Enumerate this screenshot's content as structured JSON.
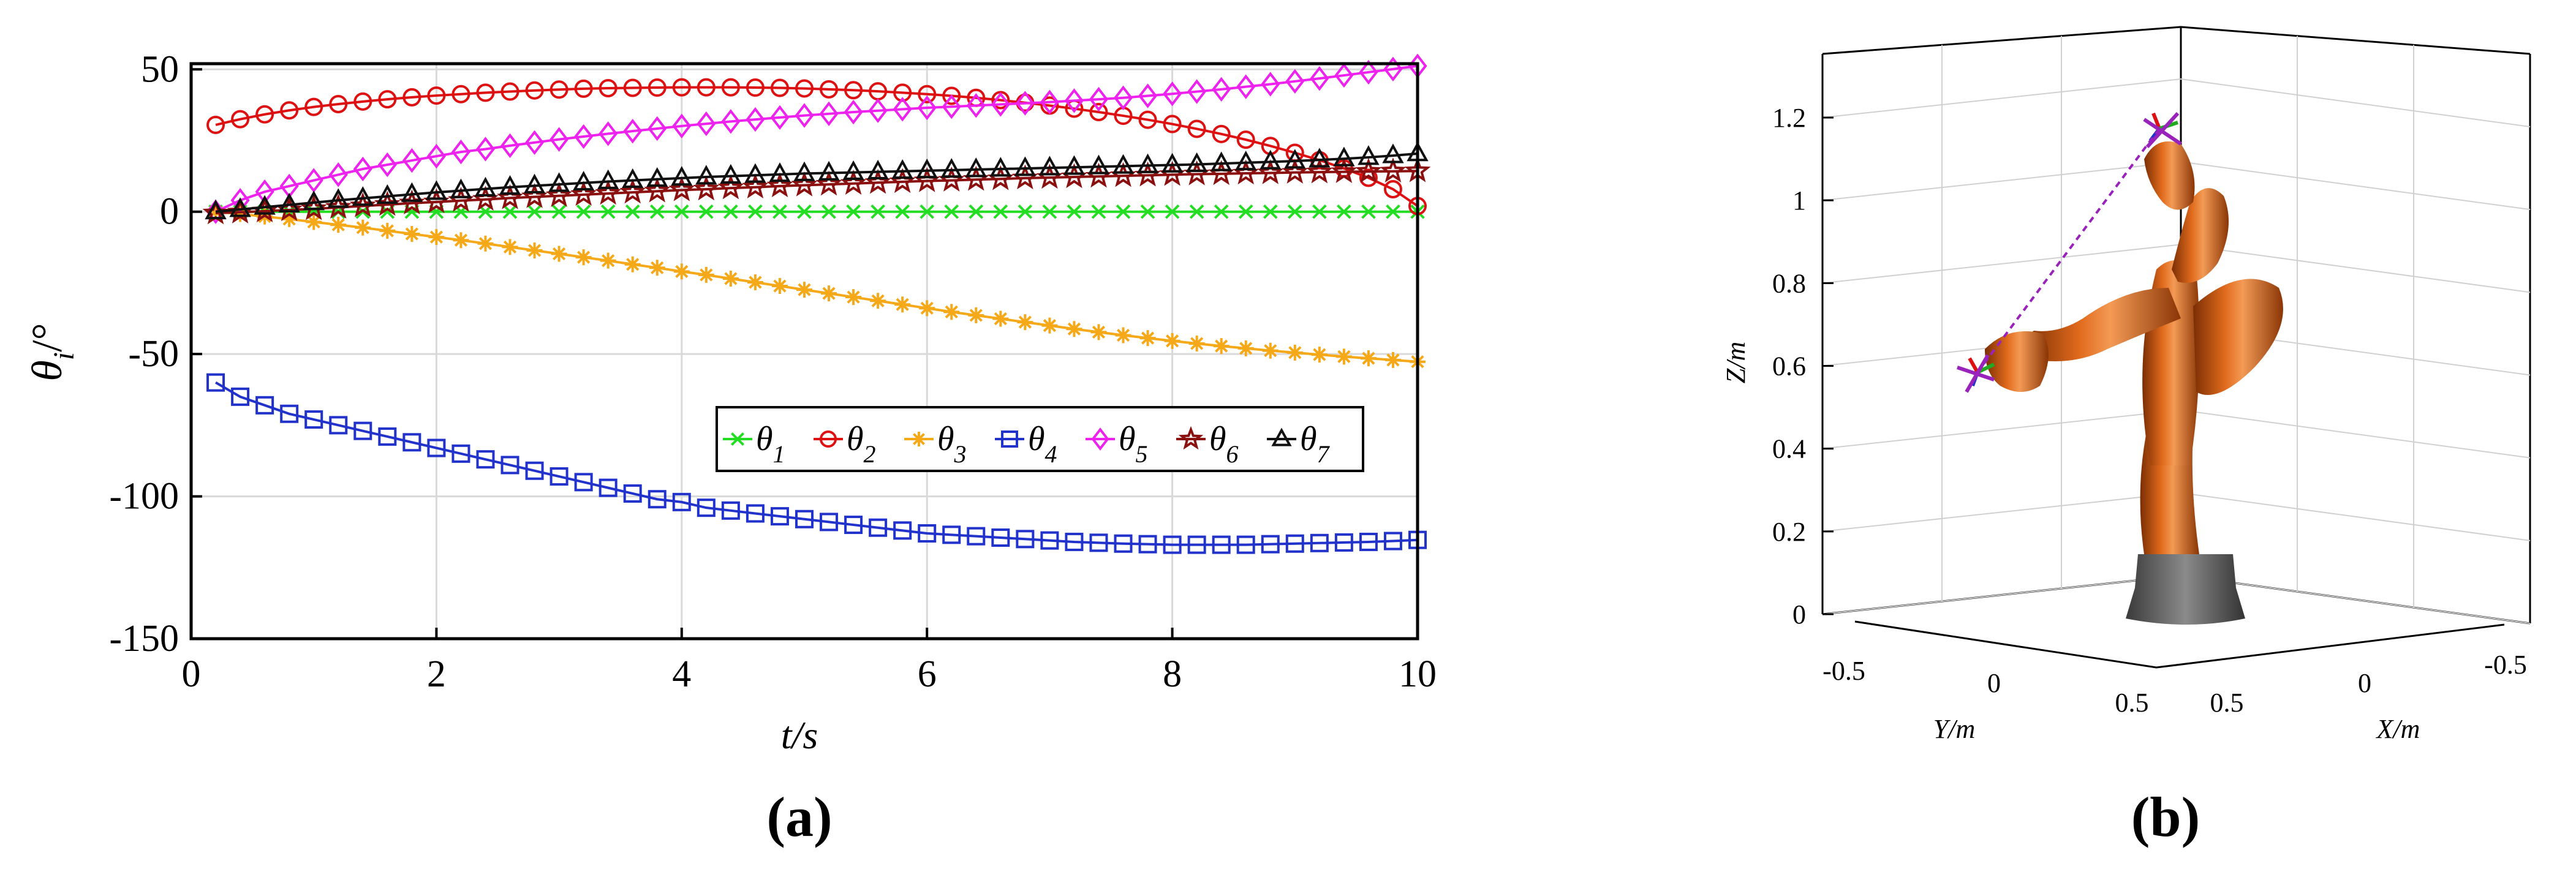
{
  "chart_data": [
    {
      "type": "line",
      "panel_label": "(a)",
      "xlabel": "t/s",
      "ylabel_symbol": "θ",
      "ylabel_sub": "i",
      "ylabel_unit": "/°",
      "xlim": [
        0,
        10
      ],
      "ylim": [
        -150,
        52
      ],
      "xticks": [
        "0",
        "2",
        "4",
        "6",
        "8",
        "10"
      ],
      "yticks": [
        "50",
        "0",
        "-50",
        "-100",
        "-150"
      ],
      "grid": true,
      "legend_position": "center-right, single row",
      "x": [
        0.2,
        0.4,
        0.6,
        0.8,
        1.0,
        1.2,
        1.4,
        1.6,
        1.8,
        2.0,
        2.2,
        2.4,
        2.6,
        2.8,
        3.0,
        3.2,
        3.4,
        3.6,
        3.8,
        4.0,
        4.2,
        4.4,
        4.6,
        4.8,
        5.0,
        5.2,
        5.4,
        5.6,
        5.8,
        6.0,
        6.2,
        6.4,
        6.6,
        6.8,
        7.0,
        7.2,
        7.4,
        7.6,
        7.8,
        8.0,
        8.2,
        8.4,
        8.6,
        8.8,
        9.0,
        9.2,
        9.4,
        9.6,
        9.8,
        10.0
      ],
      "series": [
        {
          "name": "θ",
          "sub": "1",
          "color": "#22dd22",
          "marker": "x",
          "values": [
            0,
            0,
            0,
            0,
            0,
            0,
            0,
            0,
            0,
            0,
            0,
            0,
            0,
            0,
            0,
            0,
            0,
            0,
            0,
            0,
            0,
            0,
            0,
            0,
            0,
            0,
            0,
            0,
            0,
            0,
            0,
            0,
            0,
            0,
            0,
            0,
            0,
            0,
            0,
            0,
            0,
            0,
            0,
            0,
            0,
            0,
            0,
            0,
            0,
            0
          ]
        },
        {
          "name": "θ",
          "sub": "2",
          "color": "#dd1111",
          "marker": "circle",
          "values": [
            30.5,
            32.5,
            34.2,
            35.6,
            36.8,
            37.8,
            38.7,
            39.5,
            40.2,
            40.8,
            41.3,
            41.8,
            42.2,
            42.6,
            42.9,
            43.2,
            43.4,
            43.5,
            43.6,
            43.7,
            43.7,
            43.7,
            43.6,
            43.5,
            43.3,
            43.0,
            42.7,
            42.3,
            41.8,
            41.3,
            40.7,
            40.0,
            39.2,
            38.3,
            37.3,
            36.2,
            35.0,
            33.7,
            32.3,
            30.8,
            29.1,
            27.3,
            25.3,
            23.1,
            20.7,
            18.1,
            15.2,
            11.9,
            7.9,
            2.0
          ]
        },
        {
          "name": "θ",
          "sub": "3",
          "color": "#f5a818",
          "marker": "star",
          "values": [
            0,
            -0.8,
            -1.7,
            -2.6,
            -3.6,
            -4.6,
            -5.6,
            -6.7,
            -7.8,
            -8.9,
            -10.0,
            -11.2,
            -12.4,
            -13.6,
            -14.8,
            -16.0,
            -17.2,
            -18.5,
            -19.7,
            -21.0,
            -22.2,
            -23.5,
            -24.8,
            -26.1,
            -27.4,
            -28.7,
            -30.0,
            -31.3,
            -32.6,
            -33.9,
            -35.2,
            -36.4,
            -37.6,
            -38.8,
            -40.0,
            -41.2,
            -42.3,
            -43.4,
            -44.4,
            -45.4,
            -46.3,
            -47.2,
            -48.0,
            -48.8,
            -49.5,
            -50.2,
            -50.9,
            -51.5,
            -52.1,
            -52.7
          ]
        },
        {
          "name": "θ",
          "sub": "4",
          "color": "#2233cc",
          "marker": "square",
          "values": [
            -60,
            -65,
            -68,
            -71,
            -73,
            -75,
            -77,
            -79,
            -81,
            -83,
            -85,
            -87,
            -89,
            -91,
            -93,
            -95,
            -97,
            -99,
            -101,
            -102,
            -104,
            -105,
            -106,
            -107,
            -108,
            -109,
            -110,
            -111,
            -112,
            -113,
            -113.5,
            -114,
            -114.5,
            -115,
            -115.5,
            -116,
            -116.3,
            -116.6,
            -116.8,
            -117,
            -117,
            -117,
            -117,
            -116.8,
            -116.6,
            -116.4,
            -116.2,
            -116,
            -115.7,
            -115.3
          ]
        },
        {
          "name": "θ",
          "sub": "5",
          "color": "#ee22ee",
          "marker": "diamond",
          "values": [
            0,
            4,
            7,
            9,
            11,
            13,
            15,
            16.5,
            18,
            19.5,
            21,
            22,
            23.2,
            24.3,
            25.4,
            26.4,
            27.4,
            28.3,
            29.2,
            30.1,
            30.9,
            31.7,
            32.4,
            33.1,
            33.8,
            34.4,
            35,
            35.5,
            36,
            36.5,
            36.9,
            37.3,
            37.7,
            38.1,
            38.5,
            39,
            39.5,
            40,
            40.7,
            41.4,
            42.2,
            43,
            43.9,
            44.8,
            45.8,
            46.8,
            47.9,
            49,
            50.1,
            51.2
          ]
        },
        {
          "name": "θ",
          "sub": "6",
          "color": "#8b1010",
          "marker": "pentagram",
          "values": [
            -0.5,
            -0.2,
            0.2,
            0.6,
            1,
            1.5,
            2,
            2.5,
            3,
            3.4,
            3.9,
            4.3,
            4.8,
            5.2,
            5.6,
            6,
            6.4,
            6.8,
            7.2,
            7.6,
            7.9,
            8.3,
            8.6,
            9,
            9.3,
            9.6,
            9.9,
            10.2,
            10.5,
            10.8,
            11,
            11.3,
            11.5,
            11.8,
            12,
            12.2,
            12.4,
            12.6,
            12.8,
            13,
            13.2,
            13.3,
            13.5,
            13.6,
            13.8,
            13.9,
            14,
            14.1,
            14.2,
            14.3
          ]
        },
        {
          "name": "θ",
          "sub": "7",
          "color": "#111111",
          "marker": "triangle",
          "values": [
            0,
            0.8,
            1.6,
            2.4,
            3.2,
            4,
            4.7,
            5.4,
            6.1,
            6.8,
            7.4,
            8,
            8.6,
            9.1,
            9.6,
            10.1,
            10.6,
            11,
            11.4,
            11.8,
            12.2,
            12.5,
            12.8,
            13.1,
            13.4,
            13.6,
            13.8,
            14,
            14.2,
            14.4,
            14.6,
            14.8,
            15,
            15.2,
            15.4,
            15.6,
            15.8,
            16,
            16.2,
            16.4,
            16.6,
            16.9,
            17.2,
            17.5,
            17.8,
            18.2,
            18.6,
            19.1,
            19.7,
            20.4
          ]
        }
      ]
    },
    {
      "type": "3d-render",
      "panel_label": "(b)",
      "xlabel": "X/m",
      "ylabel": "Y/m",
      "zlabel": "Z/m",
      "zticks": [
        "1.2",
        "1",
        "0.8",
        "0.6",
        "0.4",
        "0.2",
        "0"
      ],
      "yticks": [
        "-0.5",
        "0",
        "0.5"
      ],
      "xticks": [
        "0.5",
        "0",
        "-0.5"
      ],
      "grid": true,
      "colors": {
        "robot": "#c2560f",
        "base": "#555555",
        "path": "#9922bb"
      }
    }
  ]
}
